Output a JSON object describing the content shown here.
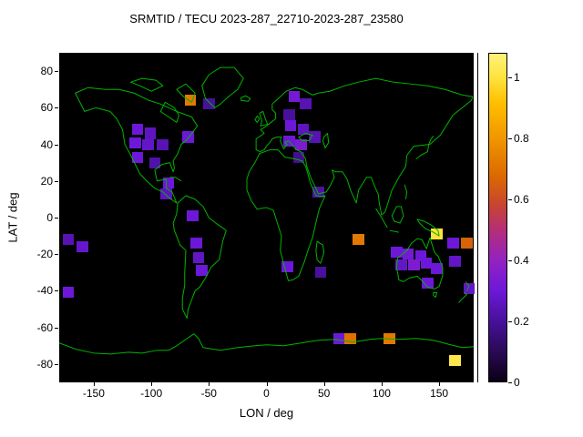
{
  "chart_data": {
    "type": "heatmap",
    "title": "SRMTID / TECU 2023-287_22710-2023-287_23580",
    "xlabel": "LON / deg",
    "ylabel": "LAT / deg",
    "xlim": [
      -180,
      180
    ],
    "ylim": [
      -90,
      90
    ],
    "x_ticks": [
      -150,
      -100,
      -50,
      0,
      50,
      100,
      150
    ],
    "y_ticks": [
      80,
      60,
      40,
      20,
      0,
      -20,
      -40,
      -60,
      -80
    ],
    "grid": false,
    "plot_background": "#000000",
    "coastline_color": "#00b400",
    "value_unit": "TECU",
    "cell_size_deg": {
      "lon": 10,
      "lat": 6
    },
    "colorbar": {
      "min": 0,
      "max": 1.08,
      "ticks": [
        0,
        0.2,
        0.4,
        0.6,
        0.8,
        1
      ],
      "position": "right",
      "palette_stops": [
        {
          "v": 0.0,
          "color": "#0b0016"
        },
        {
          "v": 0.1,
          "color": "#2a0a55"
        },
        {
          "v": 0.2,
          "color": "#48109b"
        },
        {
          "v": 0.3,
          "color": "#6d18d8"
        },
        {
          "v": 0.4,
          "color": "#9322c0"
        },
        {
          "v": 0.5,
          "color": "#b52f78"
        },
        {
          "v": 0.58,
          "color": "#c84430"
        },
        {
          "v": 0.68,
          "color": "#dc6a00"
        },
        {
          "v": 0.8,
          "color": "#f09600"
        },
        {
          "v": 0.92,
          "color": "#ffc000"
        },
        {
          "v": 1.0,
          "color": "#ffe23c"
        },
        {
          "v": 1.08,
          "color": "#fff27a"
        }
      ]
    },
    "cells": [
      {
        "lon": -66,
        "lat": 64,
        "value": 0.72
      },
      {
        "lon": -50,
        "lat": 62,
        "value": 0.2
      },
      {
        "lon": 24,
        "lat": 66,
        "value": 0.32
      },
      {
        "lon": 34,
        "lat": 62,
        "value": 0.24
      },
      {
        "lon": 20,
        "lat": 56,
        "value": 0.2
      },
      {
        "lon": -112,
        "lat": 48,
        "value": 0.3
      },
      {
        "lon": -101,
        "lat": 46,
        "value": 0.26
      },
      {
        "lon": -114,
        "lat": 41,
        "value": 0.3
      },
      {
        "lon": -103,
        "lat": 40,
        "value": 0.27
      },
      {
        "lon": -90,
        "lat": 40,
        "value": 0.24
      },
      {
        "lon": -68,
        "lat": 44,
        "value": 0.3
      },
      {
        "lon": -112,
        "lat": 33,
        "value": 0.3
      },
      {
        "lon": -97,
        "lat": 30,
        "value": 0.22
      },
      {
        "lon": 21,
        "lat": 50,
        "value": 0.3
      },
      {
        "lon": 32,
        "lat": 48,
        "value": 0.26
      },
      {
        "lon": 20,
        "lat": 42,
        "value": 0.3
      },
      {
        "lon": 30,
        "lat": 40,
        "value": 0.34
      },
      {
        "lon": 42,
        "lat": 44,
        "value": 0.24
      },
      {
        "lon": 28,
        "lat": 33,
        "value": 0.18
      },
      {
        "lon": -85,
        "lat": 19,
        "value": 0.3
      },
      {
        "lon": -87,
        "lat": 13,
        "value": 0.26
      },
      {
        "lon": 45,
        "lat": 14,
        "value": 0.22
      },
      {
        "lon": -64,
        "lat": 1,
        "value": 0.3
      },
      {
        "lon": -61,
        "lat": -14,
        "value": 0.3
      },
      {
        "lon": -59,
        "lat": -22,
        "value": 0.27
      },
      {
        "lon": -56,
        "lat": -29,
        "value": 0.3
      },
      {
        "lon": -172,
        "lat": -12,
        "value": 0.24
      },
      {
        "lon": -160,
        "lat": -16,
        "value": 0.28
      },
      {
        "lon": -172,
        "lat": -41,
        "value": 0.3
      },
      {
        "lon": 80,
        "lat": -12,
        "value": 0.72
      },
      {
        "lon": 148,
        "lat": -9,
        "value": 1.0
      },
      {
        "lon": 162,
        "lat": -14,
        "value": 0.3
      },
      {
        "lon": 174,
        "lat": -14,
        "value": 0.66
      },
      {
        "lon": 113,
        "lat": -19,
        "value": 0.3
      },
      {
        "lon": 123,
        "lat": -20,
        "value": 0.32
      },
      {
        "lon": 134,
        "lat": -21,
        "value": 0.3
      },
      {
        "lon": 117,
        "lat": -26,
        "value": 0.27
      },
      {
        "lon": 128,
        "lat": -26,
        "value": 0.34
      },
      {
        "lon": 139,
        "lat": -25,
        "value": 0.3
      },
      {
        "lon": 148,
        "lat": -28,
        "value": 0.3
      },
      {
        "lon": 164,
        "lat": -24,
        "value": 0.27
      },
      {
        "lon": 18,
        "lat": -27,
        "value": 0.3
      },
      {
        "lon": 47,
        "lat": -30,
        "value": 0.2
      },
      {
        "lon": 140,
        "lat": -36,
        "value": 0.3
      },
      {
        "lon": 176,
        "lat": -39,
        "value": 0.27
      },
      {
        "lon": 63,
        "lat": -66,
        "value": 0.3
      },
      {
        "lon": 73,
        "lat": -66,
        "value": 0.7
      },
      {
        "lon": 107,
        "lat": -66,
        "value": 0.72
      },
      {
        "lon": 164,
        "lat": -78,
        "value": 1.02
      }
    ]
  }
}
